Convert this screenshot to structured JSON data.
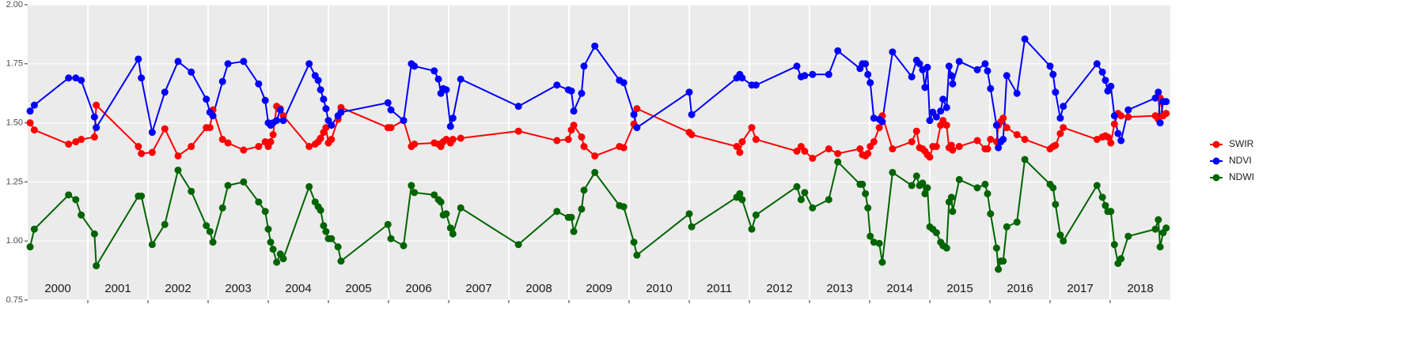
{
  "chart_data": {
    "type": "line",
    "x": [
      2000.04,
      2000.11,
      2000.68,
      2000.8,
      2000.89,
      2001.11,
      2001.14,
      2001.84,
      2001.89,
      2002.07,
      2002.28,
      2002.5,
      2002.72,
      2002.97,
      2003.03,
      2003.08,
      2003.24,
      2003.33,
      2003.59,
      2003.84,
      2003.95,
      2004.0,
      2004.04,
      2004.08,
      2004.14,
      2004.2,
      2004.25,
      2004.68,
      2004.78,
      2004.83,
      2004.87,
      2004.92,
      2004.96,
      2005.0,
      2005.05,
      2005.16,
      2005.21,
      2005.99,
      2006.04,
      2006.25,
      2006.38,
      2006.43,
      2006.76,
      2006.83,
      2006.87,
      2006.91,
      2006.96,
      2007.03,
      2007.07,
      2007.2,
      2008.16,
      2008.8,
      2008.99,
      2009.04,
      2009.08,
      2009.21,
      2009.25,
      2009.43,
      2009.84,
      2009.91,
      2010.08,
      2010.13,
      2011.0,
      2011.04,
      2011.79,
      2011.84,
      2011.88,
      2012.04,
      2012.11,
      2012.79,
      2012.86,
      2012.92,
      2013.05,
      2013.32,
      2013.47,
      2013.84,
      2013.88,
      2013.93,
      2013.97,
      2014.01,
      2014.07,
      2014.16,
      2014.21,
      2014.38,
      2014.7,
      2014.78,
      2014.83,
      2014.88,
      2014.92,
      2014.96,
      2015.0,
      2015.05,
      2015.11,
      2015.18,
      2015.22,
      2015.28,
      2015.32,
      2015.36,
      2015.38,
      2015.49,
      2015.79,
      2015.92,
      2015.96,
      2016.01,
      2016.11,
      2016.14,
      2016.18,
      2016.22,
      2016.28,
      2016.45,
      2016.58,
      2017.0,
      2017.05,
      2017.09,
      2017.17,
      2017.22,
      2017.78,
      2017.87,
      2017.92,
      2017.96,
      2018.01,
      2018.07,
      2018.13,
      2018.18,
      2018.3,
      2018.75,
      2018.8,
      2018.83,
      2018.88,
      2018.93
    ],
    "series": [
      {
        "name": "SWIR",
        "color": "#ff0000",
        "values": [
          1.5,
          1.47,
          1.41,
          1.42,
          1.43,
          1.44,
          1.575,
          1.4,
          1.37,
          1.375,
          1.475,
          1.36,
          1.4,
          1.48,
          1.48,
          1.555,
          1.43,
          1.415,
          1.385,
          1.4,
          1.42,
          1.4,
          1.42,
          1.45,
          1.57,
          1.56,
          1.53,
          1.4,
          1.41,
          1.42,
          1.435,
          1.46,
          1.48,
          1.415,
          1.43,
          1.515,
          1.565,
          1.48,
          1.48,
          1.51,
          1.4,
          1.41,
          1.415,
          1.41,
          1.4,
          1.42,
          1.43,
          1.415,
          1.43,
          1.435,
          1.465,
          1.425,
          1.43,
          1.47,
          1.49,
          1.44,
          1.4,
          1.36,
          1.4,
          1.395,
          1.495,
          1.56,
          1.46,
          1.45,
          1.4,
          1.375,
          1.42,
          1.48,
          1.43,
          1.38,
          1.4,
          1.38,
          1.35,
          1.39,
          1.37,
          1.39,
          1.365,
          1.36,
          1.37,
          1.4,
          1.42,
          1.48,
          1.53,
          1.39,
          1.42,
          1.465,
          1.395,
          1.39,
          1.38,
          1.365,
          1.355,
          1.4,
          1.4,
          1.49,
          1.51,
          1.49,
          1.395,
          1.405,
          1.385,
          1.4,
          1.425,
          1.39,
          1.39,
          1.43,
          1.42,
          1.49,
          1.505,
          1.52,
          1.48,
          1.45,
          1.43,
          1.39,
          1.4,
          1.405,
          1.455,
          1.48,
          1.43,
          1.44,
          1.445,
          1.44,
          1.415,
          1.495,
          1.54,
          1.53,
          1.525,
          1.53,
          1.515,
          1.605,
          1.53,
          1.54
        ]
      },
      {
        "name": "NDVI",
        "color": "#0000ff",
        "values": [
          1.55,
          1.575,
          1.69,
          1.69,
          1.68,
          1.525,
          1.48,
          1.77,
          1.69,
          1.46,
          1.63,
          1.76,
          1.715,
          1.6,
          1.545,
          1.53,
          1.675,
          1.75,
          1.76,
          1.665,
          1.595,
          1.5,
          1.49,
          1.5,
          1.51,
          1.555,
          1.51,
          1.75,
          1.7,
          1.68,
          1.64,
          1.6,
          1.56,
          1.51,
          1.49,
          1.53,
          1.545,
          1.585,
          1.555,
          1.51,
          1.75,
          1.74,
          1.72,
          1.685,
          1.625,
          1.645,
          1.64,
          1.485,
          1.52,
          1.685,
          1.57,
          1.66,
          1.64,
          1.635,
          1.55,
          1.625,
          1.74,
          1.825,
          1.68,
          1.67,
          1.535,
          1.48,
          1.63,
          1.535,
          1.69,
          1.705,
          1.69,
          1.66,
          1.66,
          1.74,
          1.695,
          1.7,
          1.705,
          1.705,
          1.805,
          1.73,
          1.75,
          1.75,
          1.705,
          1.67,
          1.52,
          1.515,
          1.505,
          1.8,
          1.695,
          1.765,
          1.75,
          1.725,
          1.65,
          1.735,
          1.51,
          1.545,
          1.525,
          1.55,
          1.6,
          1.565,
          1.74,
          1.7,
          1.665,
          1.76,
          1.725,
          1.75,
          1.72,
          1.645,
          1.49,
          1.395,
          1.42,
          1.43,
          1.7,
          1.625,
          1.855,
          1.74,
          1.705,
          1.63,
          1.52,
          1.57,
          1.75,
          1.715,
          1.68,
          1.635,
          1.655,
          1.53,
          1.455,
          1.425,
          1.555,
          1.605,
          1.63,
          1.5,
          1.59,
          1.59
        ]
      },
      {
        "name": "NDWI",
        "color": "#006400",
        "values": [
          0.975,
          1.05,
          1.195,
          1.175,
          1.11,
          1.03,
          0.895,
          1.19,
          1.19,
          0.985,
          1.07,
          1.3,
          1.21,
          1.065,
          1.04,
          0.995,
          1.14,
          1.235,
          1.25,
          1.165,
          1.125,
          1.05,
          0.995,
          0.965,
          0.91,
          0.945,
          0.925,
          1.23,
          1.165,
          1.145,
          1.13,
          1.065,
          1.04,
          1.01,
          1.01,
          0.975,
          0.915,
          1.07,
          1.01,
          0.98,
          1.235,
          1.205,
          1.195,
          1.175,
          1.165,
          1.11,
          1.115,
          1.055,
          1.03,
          1.14,
          0.985,
          1.125,
          1.1,
          1.1,
          1.04,
          1.135,
          1.215,
          1.29,
          1.15,
          1.145,
          0.995,
          0.94,
          1.115,
          1.06,
          1.185,
          1.2,
          1.175,
          1.05,
          1.11,
          1.23,
          1.175,
          1.205,
          1.14,
          1.175,
          1.335,
          1.24,
          1.24,
          1.2,
          1.14,
          1.02,
          0.995,
          0.99,
          0.91,
          1.29,
          1.235,
          1.275,
          1.235,
          1.245,
          1.2,
          1.225,
          1.06,
          1.05,
          1.035,
          0.995,
          0.98,
          0.97,
          1.165,
          1.185,
          1.125,
          1.26,
          1.225,
          1.24,
          1.2,
          1.115,
          0.97,
          0.88,
          0.915,
          0.915,
          1.06,
          1.08,
          1.345,
          1.24,
          1.225,
          1.155,
          1.025,
          1.0,
          1.235,
          1.185,
          1.15,
          1.125,
          1.125,
          0.985,
          0.905,
          0.925,
          1.02,
          1.05,
          1.09,
          0.975,
          1.035,
          1.055
        ]
      }
    ],
    "year_labels": [
      "2000",
      "2001",
      "2002",
      "2003",
      "2004",
      "2005",
      "2006",
      "2007",
      "2008",
      "2009",
      "2010",
      "2011",
      "2012",
      "2013",
      "2014",
      "2015",
      "2016",
      "2017",
      "2018"
    ],
    "xlim": [
      2000,
      2019
    ],
    "xticks": [
      2001,
      2002,
      2003,
      2004,
      2005,
      2006,
      2007,
      2008,
      2009,
      2010,
      2011,
      2012,
      2013,
      2014,
      2015,
      2016,
      2017,
      2018
    ],
    "ylim": [
      0.75,
      2.0
    ],
    "yticks": [
      {
        "value": 0.75,
        "label": "0.75"
      },
      {
        "value": 1.0,
        "label": "1.00"
      },
      {
        "value": 1.25,
        "label": "1.25"
      },
      {
        "value": 1.5,
        "label": "1.50"
      },
      {
        "value": 1.75,
        "label": "1.75"
      },
      {
        "value": 2.0,
        "label": "2.00"
      }
    ],
    "grid": true,
    "legend": "right"
  }
}
